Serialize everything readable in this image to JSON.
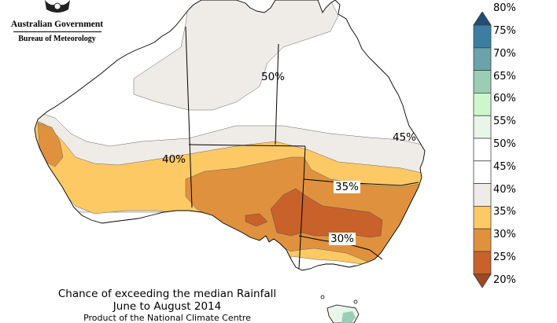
{
  "logo": {
    "gov_text": "Australian Government",
    "agency_text": "Bureau of Meteorology"
  },
  "caption": {
    "line1": "Chance of exceeding the median Rainfall",
    "line2": "June to August 2014",
    "line3": "Product of the National Climate Centre"
  },
  "map_labels": [
    "50%",
    "45%",
    "40%",
    "35%",
    "30%"
  ],
  "legend": [
    {
      "label": "80%",
      "color": "#1f4e79"
    },
    {
      "label": "75%",
      "color": "#3b7ea1"
    },
    {
      "label": "70%",
      "color": "#6aa3a8"
    },
    {
      "label": "65%",
      "color": "#99ceb5"
    },
    {
      "label": "60%",
      "color": "#ccf7cc"
    },
    {
      "label": "55%",
      "color": "#e8f5e8"
    },
    {
      "label": "50%",
      "color": "#ffffff"
    },
    {
      "label": "45%",
      "color": "#ffffff"
    },
    {
      "label": "40%",
      "color": "#efebe6"
    },
    {
      "label": "35%",
      "color": "#fdc964"
    },
    {
      "label": "30%",
      "color": "#e0913e"
    },
    {
      "label": "25%",
      "color": "#c9612a"
    },
    {
      "label": "20%",
      "color": "#a34721"
    }
  ],
  "colors": {
    "white_band": "#ffffff",
    "band_45": "#efebe6",
    "band_40": "#fdc964",
    "band_35": "#e0913e",
    "band_30": "#c9612a",
    "band_55": "#e8f5e8",
    "band_60": "#ccf7cc",
    "band_65": "#99ceb5",
    "outline": "#000000"
  }
}
